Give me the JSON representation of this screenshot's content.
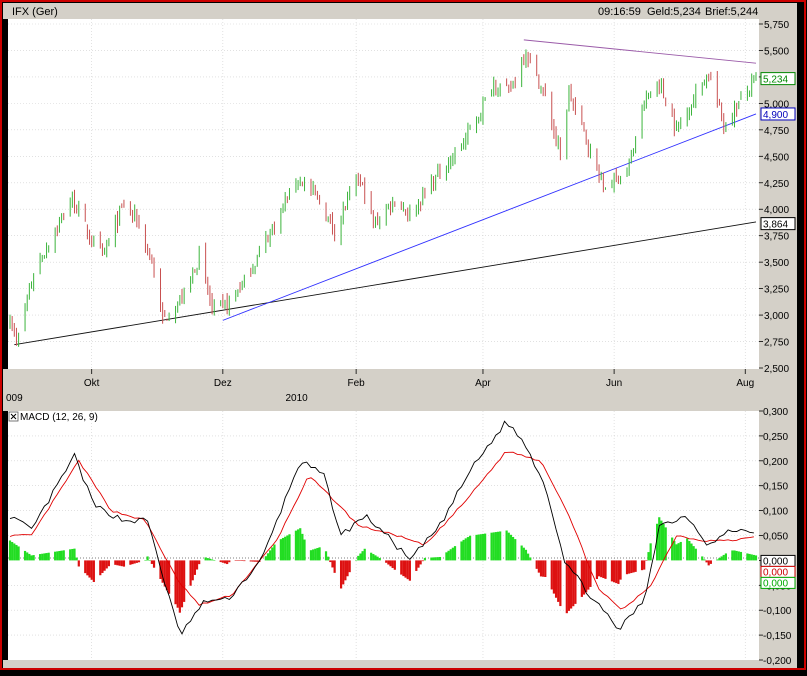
{
  "header": {
    "symbol": "IFX (Ger)",
    "time": "09:16:59",
    "bid": "Geld:5,234",
    "ask": "Brief:5,244"
  },
  "colors": {
    "frame": "#cc0000",
    "up_candle": "#3cb43c",
    "down_candle": "#c85050",
    "macd_line": "#000000",
    "signal_line": "#e00000",
    "hist_pos": "#22dd22",
    "hist_neg": "#dd1111",
    "trend_blue": "#3030ff",
    "trend_purple": "#9a5aa8",
    "trend_black": "#111111"
  },
  "chart_data": [
    {
      "type": "candlestick",
      "title": "IFX (Ger)",
      "x_start": "2009-08-24",
      "x_end": "2010-08-06",
      "ylim": [
        2.5,
        5.75
      ],
      "yticks": [
        "2,500",
        "2,750",
        "3,000",
        "3,250",
        "3,500",
        "3,750",
        "4,000",
        "4,250",
        "4,500",
        "4,750",
        "5,000",
        "5,250",
        "5,500",
        "5,750"
      ],
      "xticks": [
        {
          "date": "2009-10-01",
          "label": "Okt"
        },
        {
          "date": "2009-12-01",
          "label": "Dez"
        },
        {
          "date": "2010-02-01",
          "label": "Feb"
        },
        {
          "date": "2010-04-01",
          "label": "Apr"
        },
        {
          "date": "2010-06-01",
          "label": "Jun"
        },
        {
          "date": "2010-08-01",
          "label": "Aug"
        }
      ],
      "year_labels": [
        {
          "date": "2009-08-24",
          "label": "009"
        },
        {
          "date": "2010-01-01",
          "label": "2010"
        }
      ],
      "price_labels": [
        {
          "value": 5.234,
          "label": "5,234",
          "color": "#008800"
        },
        {
          "value": 4.9,
          "label": "4,900",
          "color": "#0000bb"
        },
        {
          "value": 3.864,
          "label": "3,864",
          "color": "#000000"
        }
      ],
      "trendlines": [
        {
          "color": "#111111",
          "from": [
            "2009-08-26",
            2.72
          ],
          "to": [
            "2010-08-06",
            3.88
          ]
        },
        {
          "color": "#3030ff",
          "from": [
            "2009-12-01",
            2.95
          ],
          "to": [
            "2010-08-06",
            4.9
          ]
        },
        {
          "color": "#9a5aa8",
          "from": [
            "2010-04-20",
            5.6
          ],
          "to": [
            "2010-08-06",
            5.38
          ]
        }
      ],
      "path": [
        [
          "2009-08-24",
          3.0
        ],
        [
          "2009-08-27",
          2.72
        ],
        [
          "2009-09-04",
          3.4
        ],
        [
          "2009-09-14",
          3.8
        ],
        [
          "2009-09-22",
          4.1
        ],
        [
          "2009-10-01",
          3.7
        ],
        [
          "2009-10-06",
          3.55
        ],
        [
          "2009-10-16",
          4.05
        ],
        [
          "2009-10-22",
          3.9
        ],
        [
          "2009-10-29",
          3.5
        ],
        [
          "2009-11-03",
          2.95
        ],
        [
          "2009-11-12",
          3.15
        ],
        [
          "2009-11-20",
          3.55
        ],
        [
          "2009-11-26",
          3.05
        ],
        [
          "2009-12-03",
          3.1
        ],
        [
          "2009-12-12",
          3.35
        ],
        [
          "2009-12-22",
          3.75
        ],
        [
          "2010-01-05",
          4.3
        ],
        [
          "2010-01-14",
          4.1
        ],
        [
          "2010-01-22",
          3.8
        ],
        [
          "2010-02-02",
          4.3
        ],
        [
          "2010-02-05",
          4.15
        ],
        [
          "2010-02-09",
          3.85
        ],
        [
          "2010-02-19",
          4.1
        ],
        [
          "2010-02-26",
          3.95
        ],
        [
          "2010-03-10",
          4.3
        ],
        [
          "2010-03-20",
          4.55
        ],
        [
          "2010-03-28",
          4.8
        ],
        [
          "2010-04-06",
          5.2
        ],
        [
          "2010-04-13",
          5.1
        ],
        [
          "2010-04-21",
          5.5
        ],
        [
          "2010-04-30",
          5.05
        ],
        [
          "2010-05-07",
          4.5
        ],
        [
          "2010-05-11",
          5.1
        ],
        [
          "2010-05-21",
          4.55
        ],
        [
          "2010-05-27",
          4.2
        ],
        [
          "2010-06-08",
          4.4
        ],
        [
          "2010-06-15",
          5.0
        ],
        [
          "2010-06-22",
          5.2
        ],
        [
          "2010-06-30",
          4.75
        ],
        [
          "2010-07-08",
          5.05
        ],
        [
          "2010-07-15",
          5.3
        ],
        [
          "2010-07-22",
          4.8
        ],
        [
          "2010-08-06",
          5.23
        ]
      ]
    },
    {
      "type": "macd",
      "title": "MACD (12, 26, 9)",
      "ylim": [
        -0.2,
        0.3
      ],
      "yticks": [
        "-0,200",
        "-0,150",
        "-0,100",
        "-0,050",
        "0,000",
        "0,050",
        "0,100",
        "0,150",
        "0,200",
        "0,250",
        "0,300"
      ],
      "value_labels": [
        {
          "value": 0.0,
          "label": "0,000",
          "color": "#000000"
        },
        {
          "value": -0.0065,
          "label": "0,000",
          "color": "#cc0000"
        },
        {
          "value": -0.0135,
          "label": "0,000",
          "color": "#00aa00"
        }
      ],
      "macd_path": [
        [
          "2009-08-24",
          0.09
        ],
        [
          "2009-09-03",
          0.06
        ],
        [
          "2009-09-23",
          0.21
        ],
        [
          "2009-10-02",
          0.11
        ],
        [
          "2009-10-16",
          0.08
        ],
        [
          "2009-10-27",
          0.08
        ],
        [
          "2009-11-05",
          -0.06
        ],
        [
          "2009-11-11",
          -0.15
        ],
        [
          "2009-11-23",
          -0.08
        ],
        [
          "2009-12-03",
          -0.08
        ],
        [
          "2009-12-19",
          0.0
        ],
        [
          "2010-01-06",
          0.2
        ],
        [
          "2010-01-17",
          0.17
        ],
        [
          "2010-01-25",
          0.05
        ],
        [
          "2010-02-05",
          0.09
        ],
        [
          "2010-02-13",
          0.06
        ],
        [
          "2010-02-26",
          0.0
        ],
        [
          "2010-03-12",
          0.07
        ],
        [
          "2010-03-26",
          0.18
        ],
        [
          "2010-04-12",
          0.28
        ],
        [
          "2010-04-21",
          0.23
        ],
        [
          "2010-04-30",
          0.15
        ],
        [
          "2010-05-09",
          0.0
        ],
        [
          "2010-05-19",
          -0.06
        ],
        [
          "2010-06-03",
          -0.14
        ],
        [
          "2010-06-15",
          -0.08
        ],
        [
          "2010-06-22",
          0.07
        ],
        [
          "2010-07-05",
          0.09
        ],
        [
          "2010-07-15",
          0.03
        ],
        [
          "2010-07-25",
          0.06
        ],
        [
          "2010-08-06",
          0.06
        ]
      ],
      "signal_path": [
        [
          "2009-08-24",
          0.05
        ],
        [
          "2009-09-03",
          0.05
        ],
        [
          "2009-09-25",
          0.2
        ],
        [
          "2009-10-10",
          0.1
        ],
        [
          "2009-10-26",
          0.08
        ],
        [
          "2009-11-10",
          -0.04
        ],
        [
          "2009-11-20",
          -0.09
        ],
        [
          "2009-12-05",
          -0.07
        ],
        [
          "2009-12-26",
          0.04
        ],
        [
          "2010-01-10",
          0.17
        ],
        [
          "2010-01-22",
          0.12
        ],
        [
          "2010-02-02",
          0.07
        ],
        [
          "2010-02-20",
          0.05
        ],
        [
          "2010-03-05",
          0.03
        ],
        [
          "2010-03-24",
          0.12
        ],
        [
          "2010-04-12",
          0.22
        ],
        [
          "2010-04-28",
          0.2
        ],
        [
          "2010-05-10",
          0.1
        ],
        [
          "2010-05-25",
          -0.06
        ],
        [
          "2010-06-05",
          -0.1
        ],
        [
          "2010-06-18",
          -0.05
        ],
        [
          "2010-06-30",
          0.05
        ],
        [
          "2010-07-12",
          0.04
        ],
        [
          "2010-07-27",
          0.04
        ],
        [
          "2010-08-06",
          0.05
        ]
      ]
    }
  ]
}
